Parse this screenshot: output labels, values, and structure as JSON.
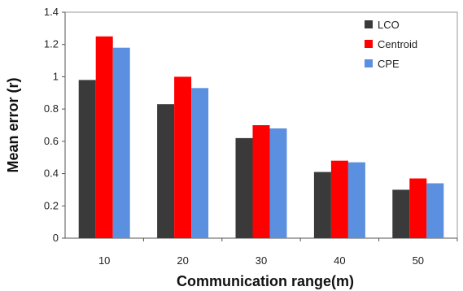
{
  "chart_data": {
    "type": "bar",
    "categories": [
      "10",
      "20",
      "30",
      "40",
      "50"
    ],
    "series": [
      {
        "name": "LCO",
        "values": [
          0.98,
          0.83,
          0.62,
          0.41,
          0.3
        ],
        "color": "#3a3a3a"
      },
      {
        "name": "Centroid",
        "values": [
          1.25,
          1.0,
          0.7,
          0.48,
          0.37
        ],
        "color": "#ff0000"
      },
      {
        "name": "CPE",
        "values": [
          1.18,
          0.93,
          0.68,
          0.47,
          0.34
        ],
        "color": "#5b8fe0"
      }
    ],
    "xlabel": "Communication range(m)",
    "ylabel": "Mean error (r)",
    "ylim": [
      0,
      1.4
    ],
    "yticks": [
      "0",
      "0.2",
      "0.4",
      "0.6",
      "0.8",
      "1",
      "1.2",
      "1.4"
    ],
    "legend_position": "top-right",
    "grid": false
  }
}
